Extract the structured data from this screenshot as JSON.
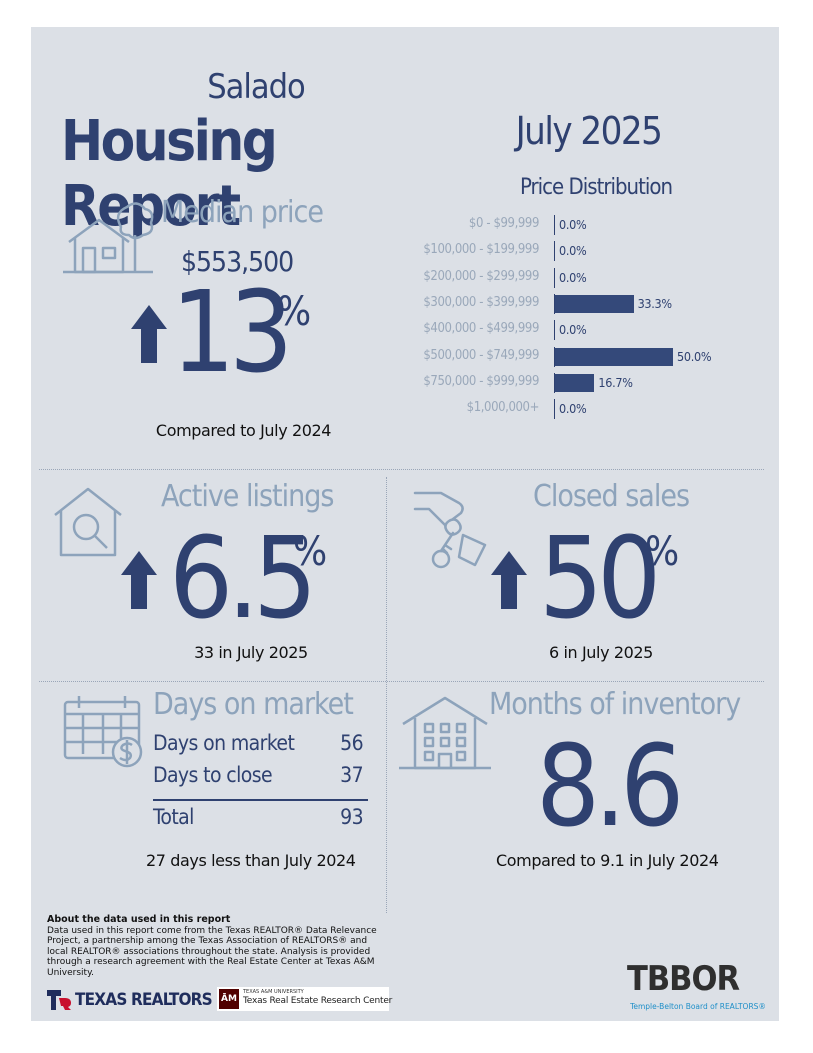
{
  "header": {
    "city": "Salado",
    "title": "Housing Report",
    "month": "July 2025"
  },
  "price_distribution": {
    "title": "Price Distribution",
    "rows": [
      {
        "label": "$0 - $99,999",
        "value": 0.0,
        "display": "0.0%"
      },
      {
        "label": "$100,000 - $199,999",
        "value": 0.0,
        "display": "0.0%"
      },
      {
        "label": "$200,000 - $299,999",
        "value": 0.0,
        "display": "0.0%"
      },
      {
        "label": "$300,000 - $399,999",
        "value": 33.3,
        "display": "33.3%"
      },
      {
        "label": "$400,000 - $499,999",
        "value": 0.0,
        "display": "0.0%"
      },
      {
        "label": "$500,000 - $749,999",
        "value": 50.0,
        "display": "50.0%"
      },
      {
        "label": "$750,000 - $999,999",
        "value": 16.7,
        "display": "16.7%"
      },
      {
        "label": "$1,000,000+",
        "value": 0.0,
        "display": "0.0%"
      }
    ]
  },
  "chart_data": {
    "type": "bar",
    "title": "Price Distribution",
    "categories": [
      "$0 - $99,999",
      "$100,000 - $199,999",
      "$200,000 - $299,999",
      "$300,000 - $399,999",
      "$400,000 - $499,999",
      "$500,000 - $749,999",
      "$750,000 - $999,999",
      "$1,000,000+"
    ],
    "values": [
      0.0,
      0.0,
      0.0,
      33.3,
      0.0,
      50.0,
      16.7,
      0.0
    ],
    "orientation": "horizontal",
    "xlim": [
      0,
      50
    ]
  },
  "median_price": {
    "label": "Median price",
    "amount": "$553,500",
    "change_value": "13",
    "change_unit": "%",
    "direction": "up",
    "caption": "Compared to July 2024"
  },
  "active_listings": {
    "label": "Active listings",
    "change_value": "6.5",
    "change_unit": "%",
    "direction": "up",
    "caption": "33 in July 2025"
  },
  "closed_sales": {
    "label": "Closed sales",
    "change_value": "50",
    "change_unit": "%",
    "direction": "up",
    "caption": "6 in July 2025"
  },
  "days_on_market": {
    "label": "Days on market",
    "rows": [
      {
        "label": "Days on market",
        "value": "56"
      },
      {
        "label": "Days to close",
        "value": "37"
      }
    ],
    "total_label": "Total",
    "total_value": "93",
    "caption": "27 days less than July 2024"
  },
  "months_inventory": {
    "label": "Months of inventory",
    "value": "8.6",
    "caption": "Compared to 9.1 in July 2024"
  },
  "footer": {
    "note_title": "About the data used in this report",
    "note_body": "Data used in this report come from the Texas REALTOR® Data Relevance Project, a partnership among the Texas Association of REALTORS® and local REALTOR® associations throughout the state. Analysis is provided through a research agreement with the Real Estate Center at Texas A&M University.",
    "texas_realtors": "TEXAS REALTORS",
    "tamu_small": "TEXAS A&M UNIVERSITY",
    "tamu_center": "Texas Real Estate Research Center",
    "tbbor_logo": "TBBOR",
    "tbbor_name": "Temple-Belton Board of REALTORS®"
  },
  "colors": {
    "navy": "#2f4170",
    "light_blue": "#8da3bb",
    "panel": "#dce0e6"
  },
  "icons": [
    "house-tree-icon",
    "up-arrow-icon",
    "house-search-icon",
    "hand-keys-icon",
    "calendar-dollar-icon",
    "apartment-icon"
  ]
}
